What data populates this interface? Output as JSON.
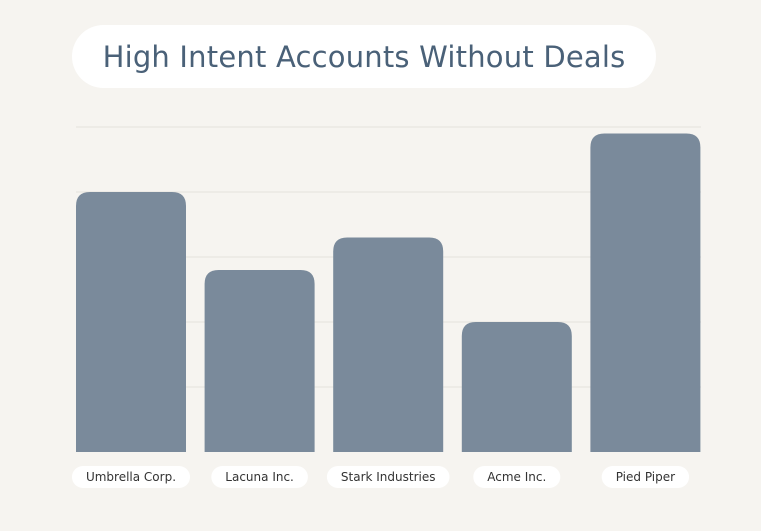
{
  "chart_data": {
    "type": "bar",
    "title": "High Intent Accounts Without Deals",
    "categories": [
      "Umbrella Corp.",
      "Lacuna Inc.",
      "Stark Industries",
      "Acme Inc.",
      "Pied Piper"
    ],
    "values": [
      4.0,
      2.8,
      3.3,
      2.0,
      4.9
    ],
    "ylim": [
      0,
      5
    ],
    "grid": true,
    "xlabel": "",
    "ylabel": ""
  },
  "colors": {
    "background": "#f6f4f0",
    "bar": "#7a8a9b",
    "grid": "#e4e2dd",
    "title": "#4a6178",
    "pill": "#ffffff"
  }
}
